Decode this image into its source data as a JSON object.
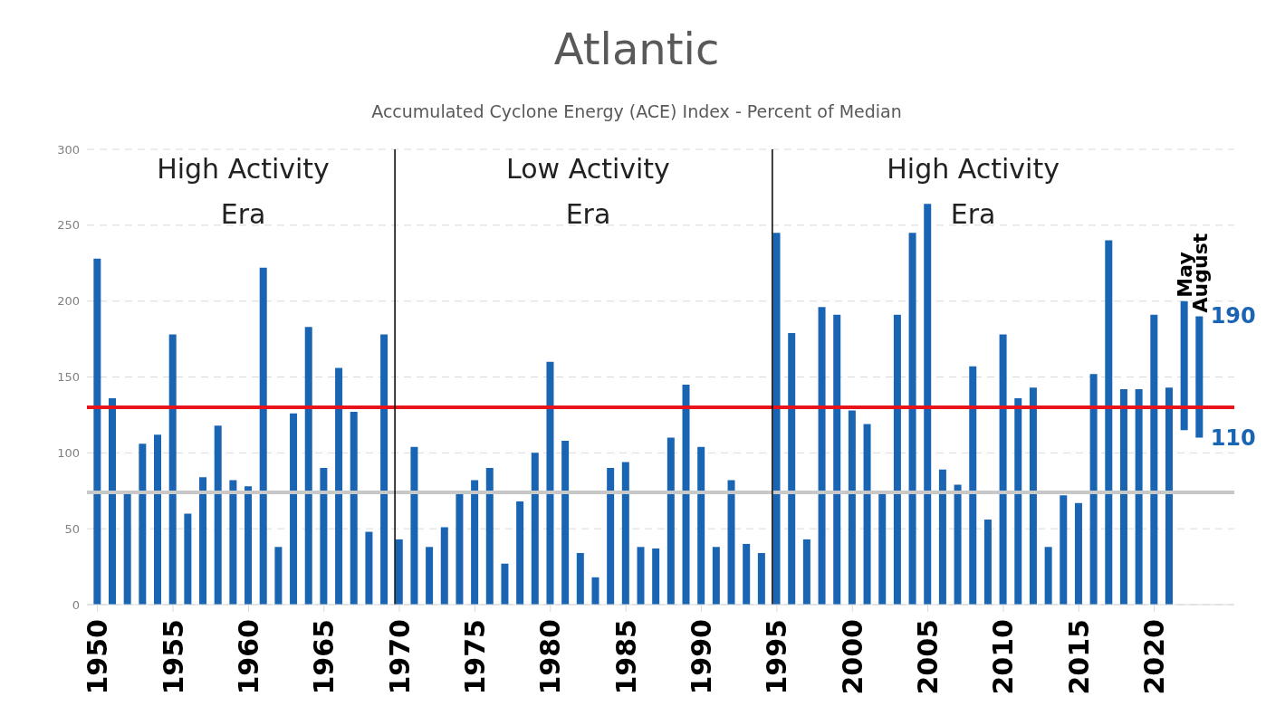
{
  "chart_data": {
    "type": "bar",
    "title": "Atlantic",
    "subtitle": "Accumulated Cyclone Energy (ACE) Index - Percent of Median",
    "series": [
      {
        "color": "#1a64b4",
        "x": [
          1950,
          1951,
          1952,
          1953,
          1954,
          1955,
          1956,
          1957,
          1958,
          1959,
          1960,
          1961,
          1962,
          1963,
          1964,
          1965,
          1966,
          1967,
          1968,
          1969,
          1970,
          1971,
          1972,
          1973,
          1974,
          1975,
          1976,
          1977,
          1978,
          1979,
          1980,
          1981,
          1982,
          1983,
          1984,
          1985,
          1986,
          1987,
          1988,
          1989,
          1990,
          1991,
          1992,
          1993,
          1994,
          1995,
          1996,
          1997,
          1998,
          1999,
          2000,
          2001,
          2002,
          2003,
          2004,
          2005,
          2006,
          2007,
          2008,
          2009,
          2010,
          2011,
          2012,
          2013,
          2014,
          2015,
          2016,
          2017,
          2018,
          2019,
          2020,
          2021
        ],
        "values": [
          228,
          136,
          73,
          106,
          112,
          178,
          60,
          84,
          118,
          82,
          78,
          222,
          38,
          126,
          183,
          90,
          156,
          127,
          48,
          178,
          43,
          104,
          38,
          51,
          73,
          82,
          90,
          27,
          68,
          100,
          160,
          108,
          34,
          18,
          90,
          94,
          38,
          37,
          110,
          145,
          104,
          38,
          82,
          40,
          34,
          245,
          179,
          43,
          196,
          191,
          128,
          119,
          73,
          191,
          245,
          264,
          89,
          79,
          157,
          56,
          178,
          136,
          143,
          38,
          72,
          67,
          152,
          240,
          142,
          142,
          191,
          143
        ]
      },
      {
        "name": "May",
        "color": "#1a64b4",
        "x": [
          2022
        ],
        "values": [
          85
        ],
        "base": [
          115
        ]
      },
      {
        "name": "August",
        "color": "#1a64b4",
        "x": [
          2023
        ],
        "values": [
          80
        ],
        "base": [
          110
        ]
      }
    ],
    "xlim": [
      1949.3,
      2025.3
    ],
    "xticks": [
      1950,
      1955,
      1960,
      1965,
      1970,
      1975,
      1980,
      1985,
      1990,
      1995,
      2000,
      2005,
      2010,
      2015,
      2020
    ],
    "ylim": [
      0,
      300
    ],
    "yticks": [
      0,
      50,
      100,
      150,
      200,
      250,
      300
    ],
    "grid": "y",
    "ref_lines": [
      {
        "axis": "y",
        "value": 130,
        "color": "#e8141b"
      },
      {
        "axis": "y",
        "value": 74,
        "color": "#c8c8c8"
      },
      {
        "axis": "x",
        "value": 1970,
        "color": "#000000"
      },
      {
        "axis": "x",
        "value": 1995,
        "color": "#000000"
      }
    ],
    "annotations": [
      "High Activity Era",
      "Low Activity Era",
      "High Activity Era",
      {
        "text": "190",
        "x": 2023,
        "y": 190
      },
      {
        "text": "110",
        "x": 2023,
        "y": 110
      }
    ]
  }
}
